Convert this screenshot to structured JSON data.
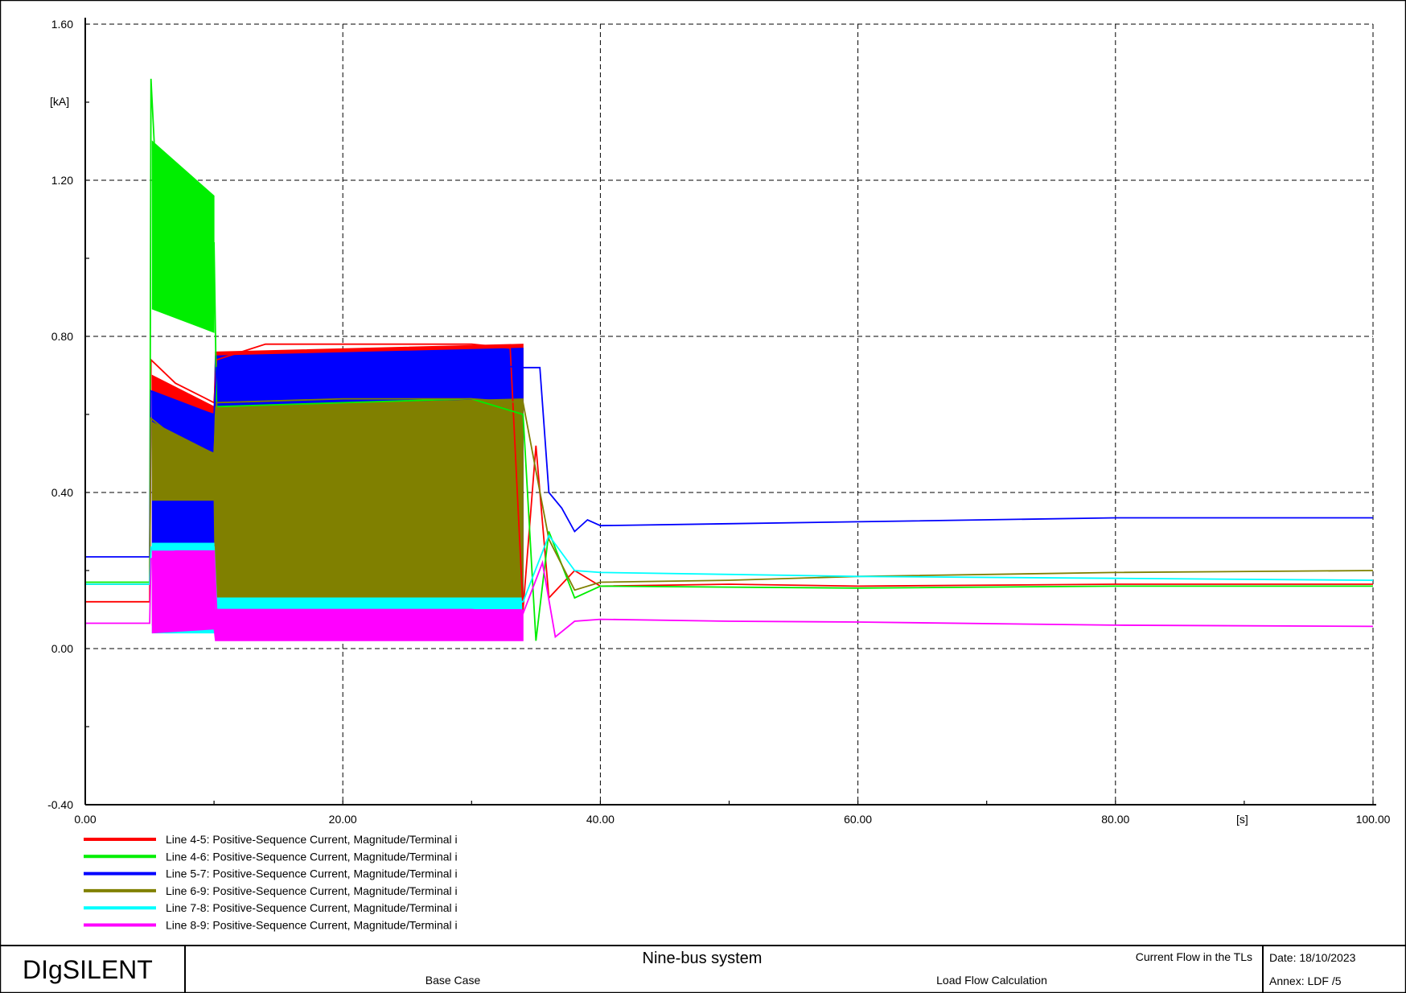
{
  "chart_data": {
    "type": "line",
    "xlim": [
      0,
      100
    ],
    "ylim": [
      -0.4,
      1.6
    ],
    "x_ticks": [
      0,
      20,
      40,
      60,
      80,
      100
    ],
    "x_tick_labels": [
      "0.00",
      "20.00",
      "40.00",
      "60.00",
      "80.00",
      "100.00"
    ],
    "y_ticks": [
      -0.4,
      0,
      0.4,
      0.8,
      1.2,
      1.6
    ],
    "y_tick_labels": [
      "-0.40",
      "0.00",
      "0.40",
      "0.80",
      "1.20",
      "1.60"
    ],
    "xlabel": "[s]",
    "ylabel": "[kA]",
    "grid": true,
    "legend_position": "bottom-left",
    "series": [
      {
        "name": "Line 4-5: Positive-Sequence Current, Magnitude/Terminal i",
        "color": "#ff0000",
        "x": [
          0,
          5,
          5.1,
          7,
          10,
          10.2,
          14,
          20,
          25,
          30,
          33,
          34,
          35,
          36,
          38,
          40,
          50,
          60,
          80,
          100
        ],
        "y": [
          0.12,
          0.12,
          0.74,
          0.68,
          0.63,
          0.74,
          0.78,
          0.78,
          0.78,
          0.78,
          0.77,
          0.1,
          0.52,
          0.13,
          0.2,
          0.16,
          0.165,
          0.16,
          0.165,
          0.165
        ],
        "band": {
          "x": [
            5.2,
            10,
            10.1,
            34
          ],
          "low": [
            0.06,
            0.05,
            0.1,
            0.1
          ],
          "high": [
            0.7,
            0.62,
            0.76,
            0.78
          ]
        }
      },
      {
        "name": "Line 4-6: Positive-Sequence Current, Magnitude/Terminal i",
        "color": "#00ee00",
        "x": [
          0,
          5,
          5.1,
          5.5,
          7,
          10,
          10.2,
          20,
          30,
          34,
          35,
          36,
          38,
          40,
          60,
          80,
          100
        ],
        "y": [
          0.17,
          0.17,
          1.46,
          1.2,
          1.1,
          1.04,
          0.62,
          0.63,
          0.64,
          0.6,
          0.02,
          0.3,
          0.13,
          0.16,
          0.155,
          0.16,
          0.16
        ],
        "band": {
          "x": [
            5.2,
            10
          ],
          "low": [
            0.87,
            0.81
          ],
          "high": [
            1.3,
            1.16
          ]
        }
      },
      {
        "name": "Line 5-7: Positive-Sequence Current, Magnitude/Terminal i",
        "color": "#0000ff",
        "x": [
          0,
          5,
          5.1,
          7,
          10,
          10.2,
          20,
          30,
          34,
          35.3,
          36,
          37,
          38,
          39,
          40,
          50,
          60,
          80,
          100
        ],
        "y": [
          0.235,
          0.235,
          0.66,
          0.63,
          0.6,
          0.72,
          0.74,
          0.73,
          0.72,
          0.72,
          0.4,
          0.36,
          0.3,
          0.33,
          0.315,
          0.32,
          0.325,
          0.335,
          0.335
        ],
        "band": {
          "x": [
            5.2,
            10,
            10.1,
            34
          ],
          "low": [
            0.25,
            0.24,
            0.1,
            0.1
          ],
          "high": [
            0.66,
            0.6,
            0.75,
            0.77
          ]
        }
      },
      {
        "name": "Line 6-9: Positive-Sequence Current, Magnitude/Terminal i",
        "color": "#808000",
        "x": [
          0,
          5,
          5.1,
          7,
          10,
          10.2,
          20,
          30,
          34,
          36,
          38,
          40,
          50,
          60,
          80,
          100
        ],
        "y": [
          0.165,
          0.165,
          0.59,
          0.54,
          0.5,
          0.63,
          0.64,
          0.64,
          0.63,
          0.28,
          0.15,
          0.17,
          0.175,
          0.185,
          0.195,
          0.2
        ],
        "band": {
          "x": [
            5.2,
            10,
            10.1,
            34
          ],
          "low": [
            0.38,
            0.38,
            0.13,
            0.13
          ],
          "high": [
            0.58,
            0.5,
            0.62,
            0.64
          ]
        }
      },
      {
        "name": "Line 7-8: Positive-Sequence Current, Magnitude/Terminal i",
        "color": "#00ffff",
        "x": [
          0,
          5,
          5.1,
          7,
          10,
          10.2,
          20,
          30,
          34,
          36,
          38,
          40,
          50,
          60,
          80,
          100
        ],
        "y": [
          0.165,
          0.165,
          0.26,
          0.26,
          0.26,
          0.12,
          0.125,
          0.12,
          0.12,
          0.29,
          0.2,
          0.195,
          0.19,
          0.185,
          0.18,
          0.175
        ],
        "band": {
          "x": [
            5.2,
            10,
            10.1,
            34
          ],
          "low": [
            0.04,
            0.04,
            0.09,
            0.09
          ],
          "high": [
            0.27,
            0.27,
            0.13,
            0.13
          ]
        }
      },
      {
        "name": "Line 8-9: Positive-Sequence Current, Magnitude/Terminal i",
        "color": "#ff00ff",
        "x": [
          0,
          5,
          5.1,
          7,
          10,
          10.2,
          20,
          30,
          34,
          35.5,
          36.5,
          38,
          40,
          50,
          60,
          80,
          100
        ],
        "y": [
          0.065,
          0.065,
          0.23,
          0.25,
          0.25,
          0.1,
          0.1,
          0.1,
          0.09,
          0.22,
          0.03,
          0.07,
          0.075,
          0.07,
          0.068,
          0.06,
          0.057
        ],
        "band": {
          "x": [
            5.2,
            10,
            10.1,
            34
          ],
          "low": [
            0.04,
            0.05,
            0.02,
            0.02
          ],
          "high": [
            0.25,
            0.25,
            0.1,
            0.1
          ]
        }
      }
    ]
  },
  "footer": {
    "logo": "DIgSILENT",
    "title": "Nine-bus system",
    "subtitle_right": "Current Flow in the TLs",
    "case": "Base Case",
    "calc": "Load Flow Calculation",
    "date": "Date: 18/10/2023",
    "annex": "Annex: LDF /5"
  }
}
